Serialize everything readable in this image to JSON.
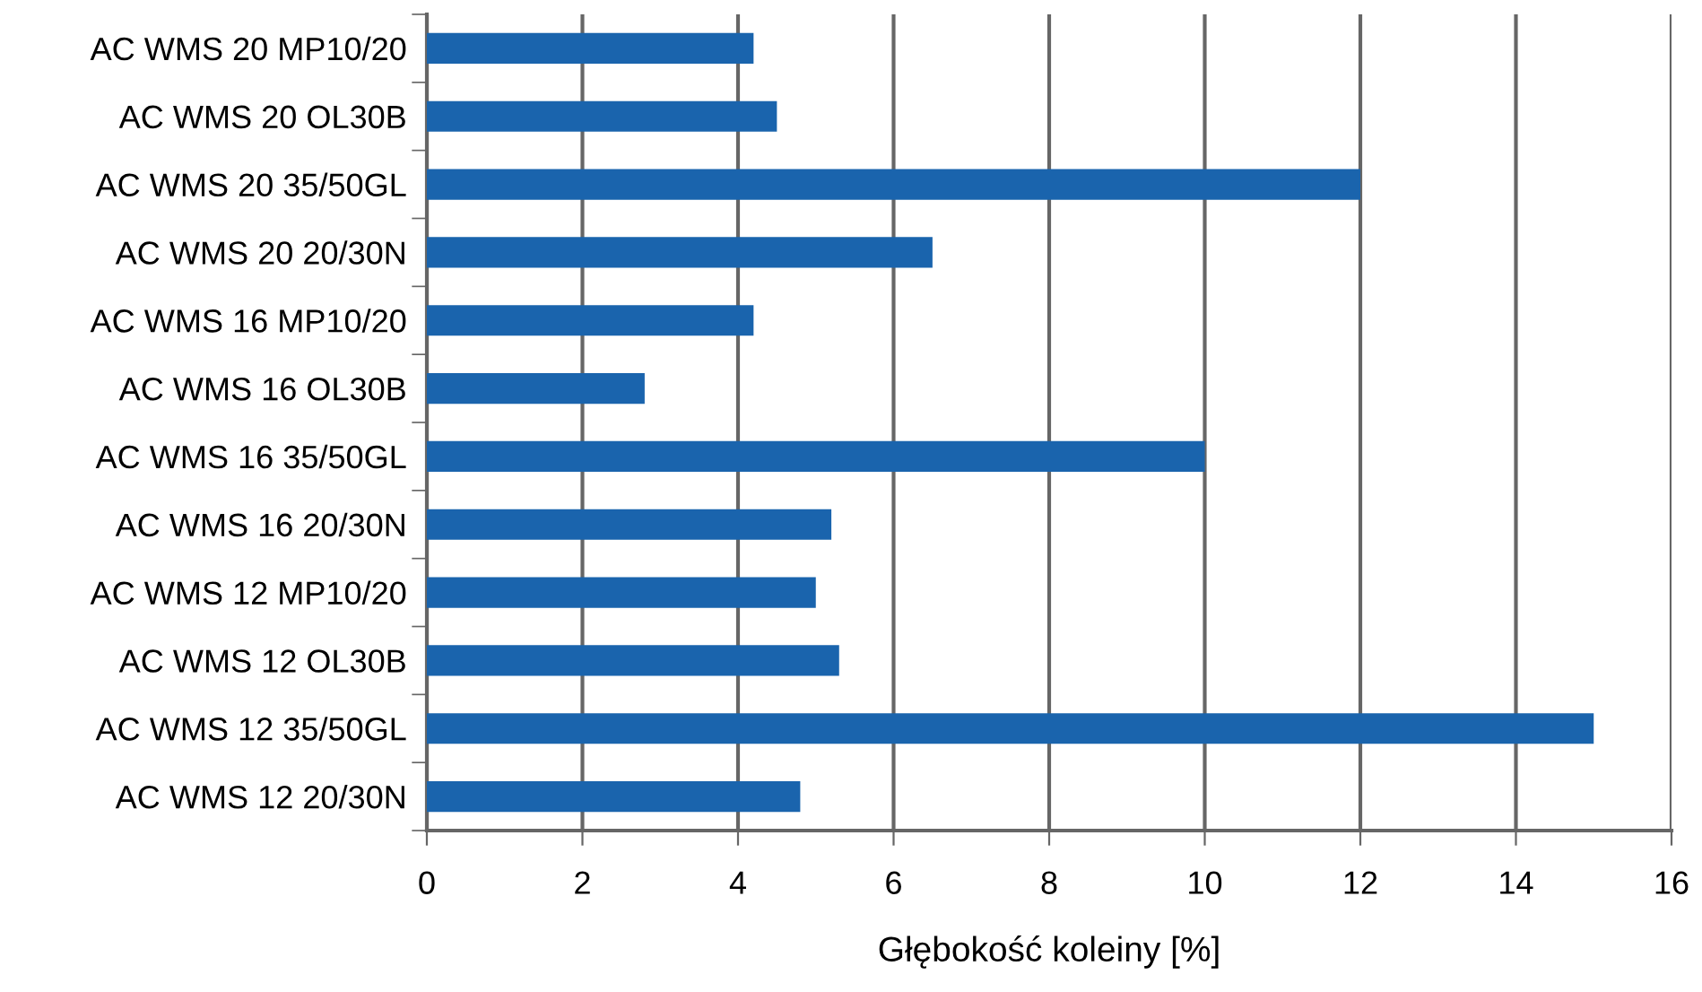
{
  "chart_data": {
    "type": "bar",
    "orientation": "horizontal",
    "xlabel": "Głębokość koleiny [%]",
    "categories": [
      "AC WMS 20 MP10/20",
      "AC WMS 20 OL30B",
      "AC WMS 20 35/50GL",
      "AC WMS 20 20/30N",
      "AC WMS 16 MP10/20",
      "AC WMS 16 OL30B",
      "AC WMS 16 35/50GL",
      "AC WMS 16 20/30N",
      "AC WMS 12 MP10/20",
      "AC WMS 12 OL30B",
      "AC WMS 12 35/50GL",
      "AC WMS 12 20/30N"
    ],
    "values": [
      4.2,
      4.5,
      12.0,
      6.5,
      4.2,
      2.8,
      10.0,
      5.2,
      5.0,
      5.3,
      15.0,
      4.8
    ],
    "color": "#1a64ad",
    "xlim": [
      0,
      16
    ],
    "xticks": [
      0,
      2,
      4,
      6,
      8,
      10,
      12,
      14,
      16
    ],
    "grid": "x"
  }
}
